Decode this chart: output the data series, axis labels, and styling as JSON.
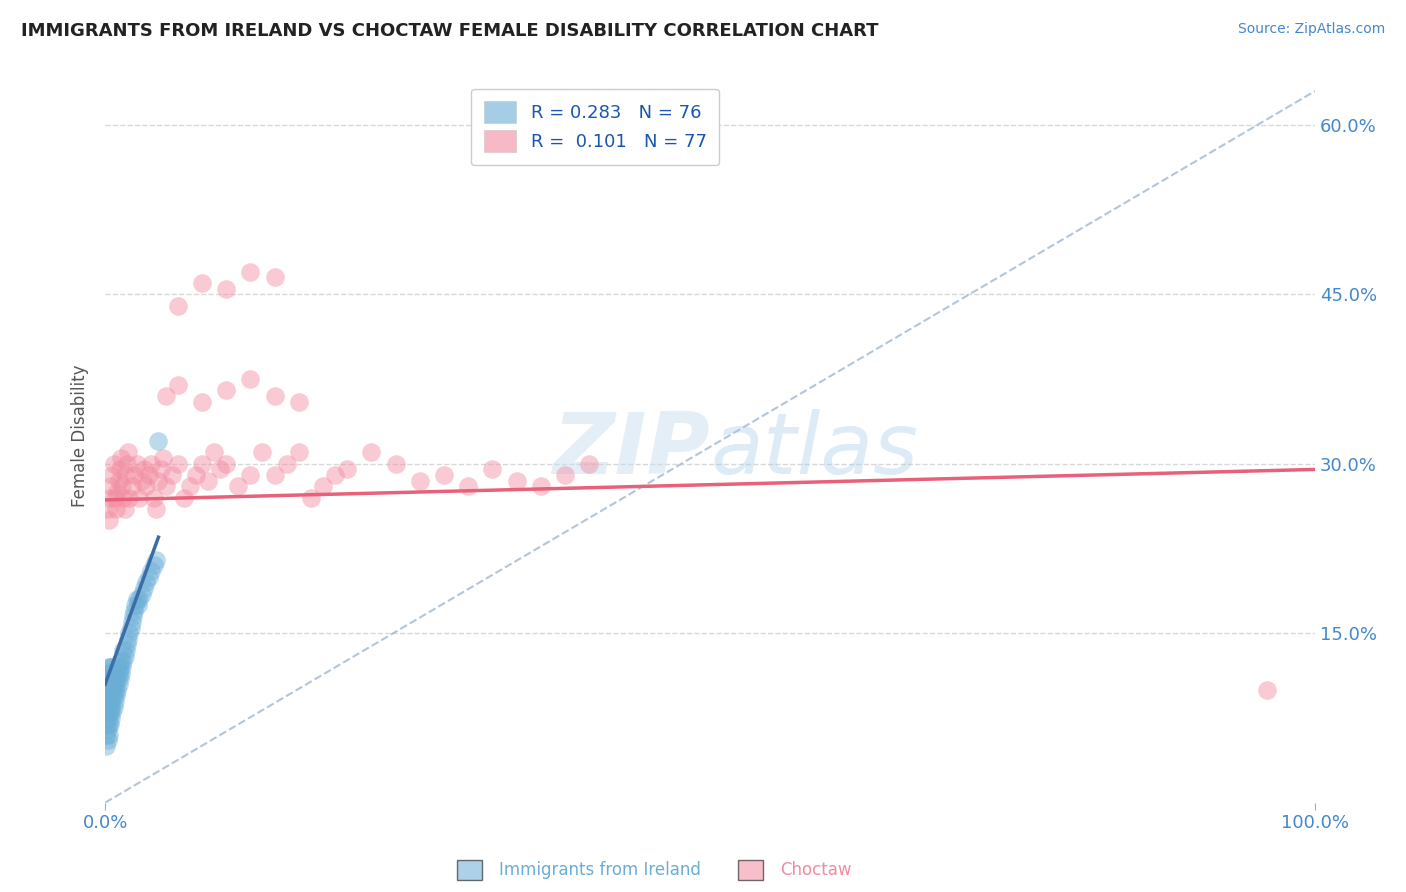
{
  "title": "IMMIGRANTS FROM IRELAND VS CHOCTAW FEMALE DISABILITY CORRELATION CHART",
  "source": "Source: ZipAtlas.com",
  "ylabel": "Female Disability",
  "legend_entries": [
    {
      "label": "R = 0.283   N = 76",
      "color": "#a8c4e0"
    },
    {
      "label": "R =  0.101   N = 77",
      "color": "#f4a7b9"
    }
  ],
  "ireland_color": "#6aaed6",
  "choctaw_color": "#f28b9f",
  "ireland_line_color": "#3a6ea8",
  "choctaw_line_color": "#e8607a",
  "dashed_line_color": "#a0b8d0",
  "title_color": "#222222",
  "axis_label_color": "#555555",
  "tick_color": "#4488cc",
  "grid_color": "#d8d8d8",
  "background_color": "#ffffff",
  "xlim": [
    0,
    1.0
  ],
  "ylim": [
    0,
    0.65
  ],
  "ytick_vals": [
    0.15,
    0.3,
    0.45,
    0.6
  ],
  "ytick_labels": [
    "15.0%",
    "30.0%",
    "45.0%",
    "60.0%"
  ],
  "ireland_scatter_x": [
    0.001,
    0.001,
    0.001,
    0.001,
    0.001,
    0.002,
    0.002,
    0.002,
    0.002,
    0.002,
    0.002,
    0.002,
    0.003,
    0.003,
    0.003,
    0.003,
    0.003,
    0.003,
    0.003,
    0.004,
    0.004,
    0.004,
    0.004,
    0.004,
    0.004,
    0.005,
    0.005,
    0.005,
    0.005,
    0.005,
    0.006,
    0.006,
    0.006,
    0.006,
    0.006,
    0.007,
    0.007,
    0.007,
    0.008,
    0.008,
    0.008,
    0.009,
    0.009,
    0.01,
    0.01,
    0.01,
    0.011,
    0.011,
    0.012,
    0.012,
    0.013,
    0.013,
    0.014,
    0.015,
    0.015,
    0.016,
    0.017,
    0.018,
    0.019,
    0.02,
    0.021,
    0.022,
    0.023,
    0.024,
    0.025,
    0.026,
    0.027,
    0.028,
    0.03,
    0.032,
    0.034,
    0.036,
    0.038,
    0.04,
    0.042,
    0.044
  ],
  "ireland_scatter_y": [
    0.05,
    0.06,
    0.07,
    0.08,
    0.09,
    0.055,
    0.065,
    0.075,
    0.085,
    0.095,
    0.105,
    0.115,
    0.06,
    0.07,
    0.08,
    0.09,
    0.1,
    0.11,
    0.12,
    0.07,
    0.08,
    0.09,
    0.1,
    0.11,
    0.12,
    0.075,
    0.085,
    0.095,
    0.105,
    0.115,
    0.08,
    0.09,
    0.1,
    0.11,
    0.12,
    0.085,
    0.095,
    0.105,
    0.09,
    0.1,
    0.11,
    0.095,
    0.105,
    0.1,
    0.11,
    0.12,
    0.105,
    0.115,
    0.11,
    0.12,
    0.115,
    0.125,
    0.12,
    0.125,
    0.135,
    0.13,
    0.135,
    0.14,
    0.145,
    0.15,
    0.155,
    0.16,
    0.165,
    0.17,
    0.175,
    0.18,
    0.175,
    0.18,
    0.185,
    0.19,
    0.195,
    0.2,
    0.205,
    0.21,
    0.215,
    0.32
  ],
  "choctaw_scatter_x": [
    0.002,
    0.003,
    0.004,
    0.005,
    0.006,
    0.007,
    0.008,
    0.009,
    0.01,
    0.011,
    0.012,
    0.013,
    0.014,
    0.015,
    0.016,
    0.017,
    0.018,
    0.019,
    0.02,
    0.022,
    0.024,
    0.026,
    0.028,
    0.03,
    0.032,
    0.034,
    0.036,
    0.038,
    0.04,
    0.042,
    0.044,
    0.046,
    0.048,
    0.05,
    0.055,
    0.06,
    0.065,
    0.07,
    0.075,
    0.08,
    0.085,
    0.09,
    0.095,
    0.1,
    0.11,
    0.12,
    0.13,
    0.14,
    0.15,
    0.16,
    0.17,
    0.18,
    0.19,
    0.2,
    0.22,
    0.24,
    0.26,
    0.28,
    0.3,
    0.32,
    0.34,
    0.36,
    0.38,
    0.4,
    0.05,
    0.06,
    0.08,
    0.1,
    0.12,
    0.14,
    0.16,
    0.06,
    0.08,
    0.1,
    0.12,
    0.14,
    0.96
  ],
  "choctaw_scatter_y": [
    0.26,
    0.25,
    0.27,
    0.28,
    0.29,
    0.3,
    0.27,
    0.26,
    0.275,
    0.285,
    0.295,
    0.305,
    0.28,
    0.27,
    0.26,
    0.29,
    0.3,
    0.31,
    0.27,
    0.28,
    0.29,
    0.3,
    0.27,
    0.285,
    0.295,
    0.28,
    0.29,
    0.3,
    0.27,
    0.26,
    0.285,
    0.295,
    0.305,
    0.28,
    0.29,
    0.3,
    0.27,
    0.28,
    0.29,
    0.3,
    0.285,
    0.31,
    0.295,
    0.3,
    0.28,
    0.29,
    0.31,
    0.29,
    0.3,
    0.31,
    0.27,
    0.28,
    0.29,
    0.295,
    0.31,
    0.3,
    0.285,
    0.29,
    0.28,
    0.295,
    0.285,
    0.28,
    0.29,
    0.3,
    0.36,
    0.37,
    0.355,
    0.365,
    0.375,
    0.36,
    0.355,
    0.44,
    0.46,
    0.455,
    0.47,
    0.465,
    0.1
  ],
  "ireland_line_x": [
    0.0,
    0.044
  ],
  "ireland_line_y": [
    0.105,
    0.235
  ],
  "choctaw_line_x": [
    0.0,
    1.0
  ],
  "choctaw_line_y": [
    0.268,
    0.295
  ],
  "diag_line_x": [
    0.0,
    1.0
  ],
  "diag_line_y": [
    0.0,
    0.63
  ]
}
